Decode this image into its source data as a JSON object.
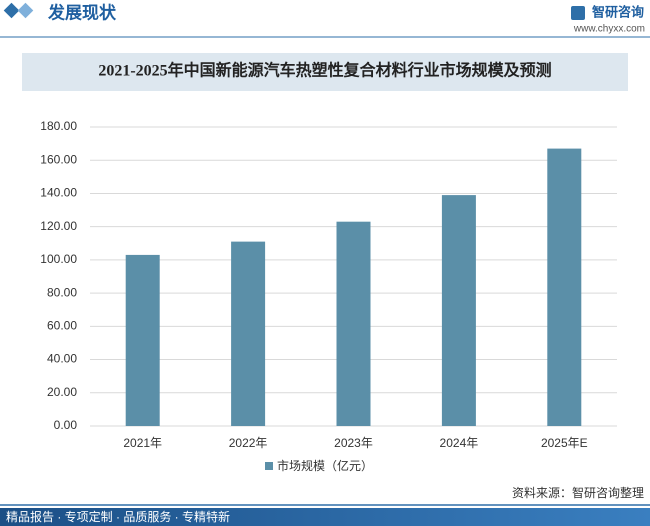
{
  "header": {
    "title": "发展现状",
    "brand": "智研咨询",
    "url": "www.chyxx.com"
  },
  "chart_data": {
    "type": "bar",
    "title": "2021-2025年中国新能源汽车热塑性复合材料行业市场规模及预测",
    "categories": [
      "2021年",
      "2022年",
      "2023年",
      "2024年",
      "2025年E"
    ],
    "series": [
      {
        "name": "市场规模（亿元）",
        "color": "#5b8fa8",
        "values": [
          103,
          111,
          123,
          139,
          167
        ]
      }
    ],
    "ylim": [
      0,
      180
    ],
    "yticks": [
      {
        "value": 0,
        "label": "0.00"
      },
      {
        "value": 20,
        "label": "20.00"
      },
      {
        "value": 40,
        "label": "40.00"
      },
      {
        "value": 60,
        "label": "60.00"
      },
      {
        "value": 80,
        "label": "80.00"
      },
      {
        "value": 100,
        "label": "100.00"
      },
      {
        "value": 120,
        "label": "120.00"
      },
      {
        "value": 140,
        "label": "140.00"
      },
      {
        "value": 160,
        "label": "160.00"
      },
      {
        "value": 180,
        "label": "180.00"
      }
    ],
    "grid": true
  },
  "footer": {
    "source": "资料来源：智研咨询整理",
    "slogan": "精品报告 · 专项定制 · 品质服务 · 专精特新"
  }
}
